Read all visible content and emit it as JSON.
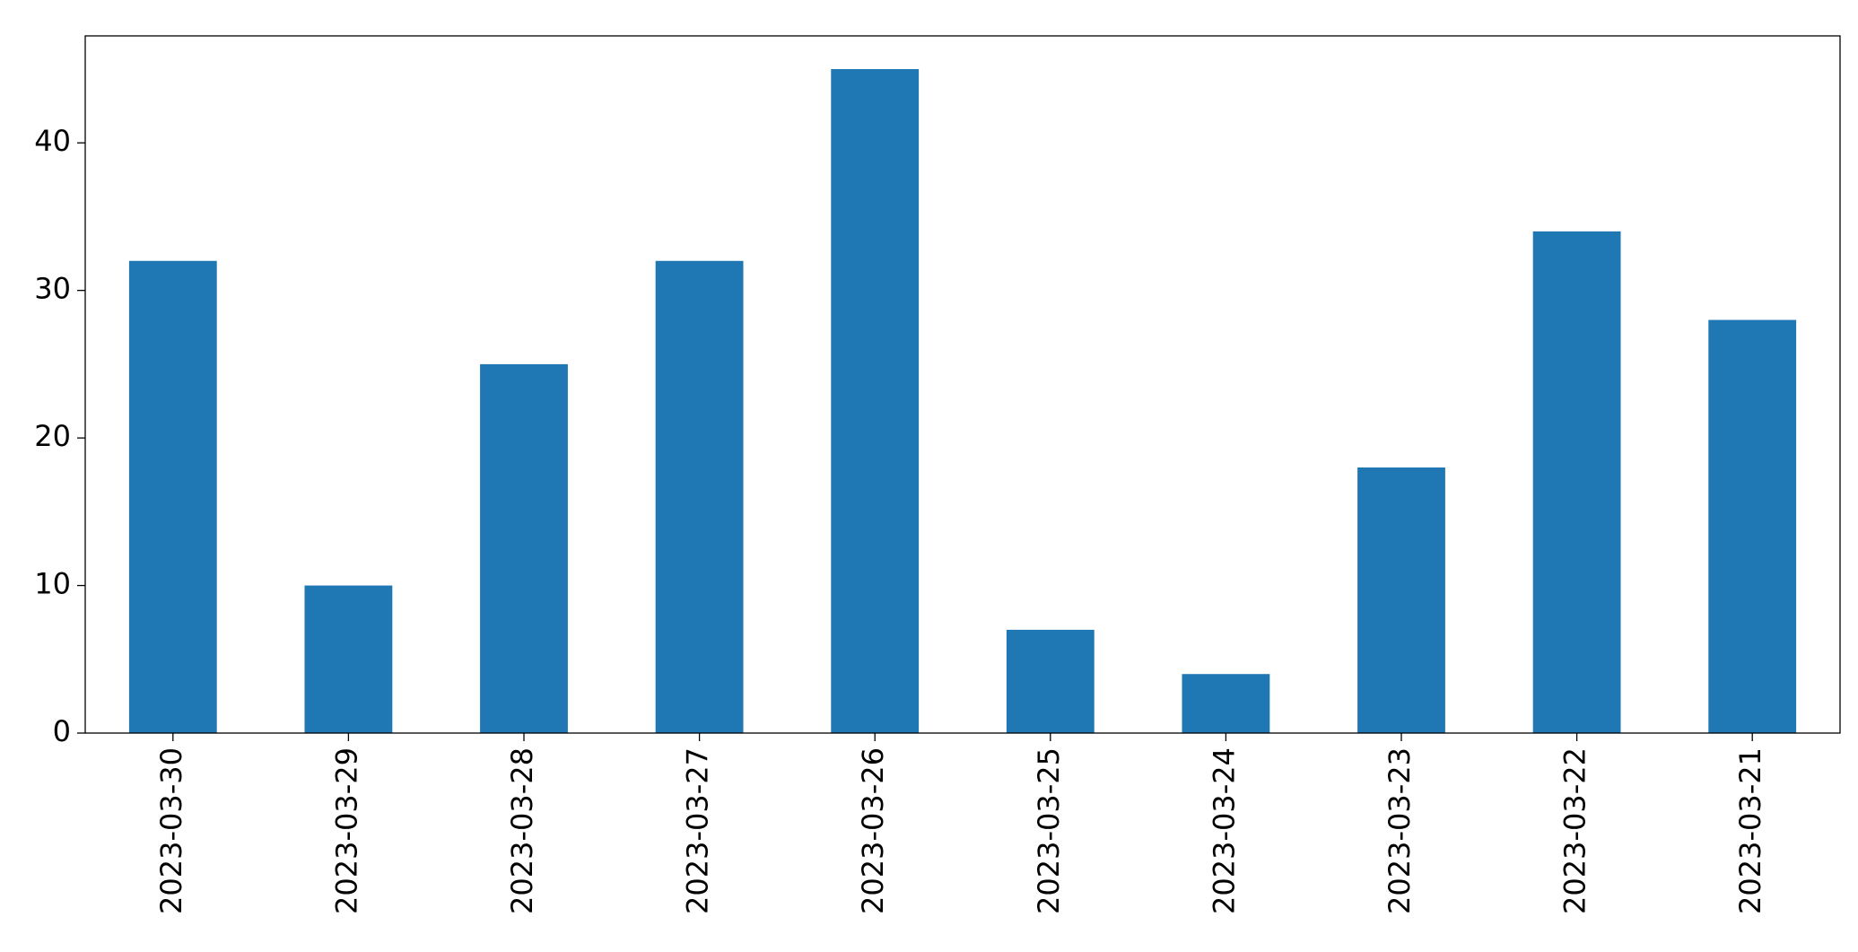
{
  "chart_data": {
    "type": "bar",
    "categories": [
      "2023-03-30",
      "2023-03-29",
      "2023-03-28",
      "2023-03-27",
      "2023-03-26",
      "2023-03-25",
      "2023-03-24",
      "2023-03-23",
      "2023-03-22",
      "2023-03-21"
    ],
    "values": [
      32,
      10,
      25,
      32,
      45,
      7,
      4,
      18,
      34,
      28
    ],
    "color": "#1f77b4",
    "ylim": [
      0,
      47.25
    ],
    "yticks": [
      0,
      10,
      20,
      30,
      40
    ],
    "grid": false
  }
}
